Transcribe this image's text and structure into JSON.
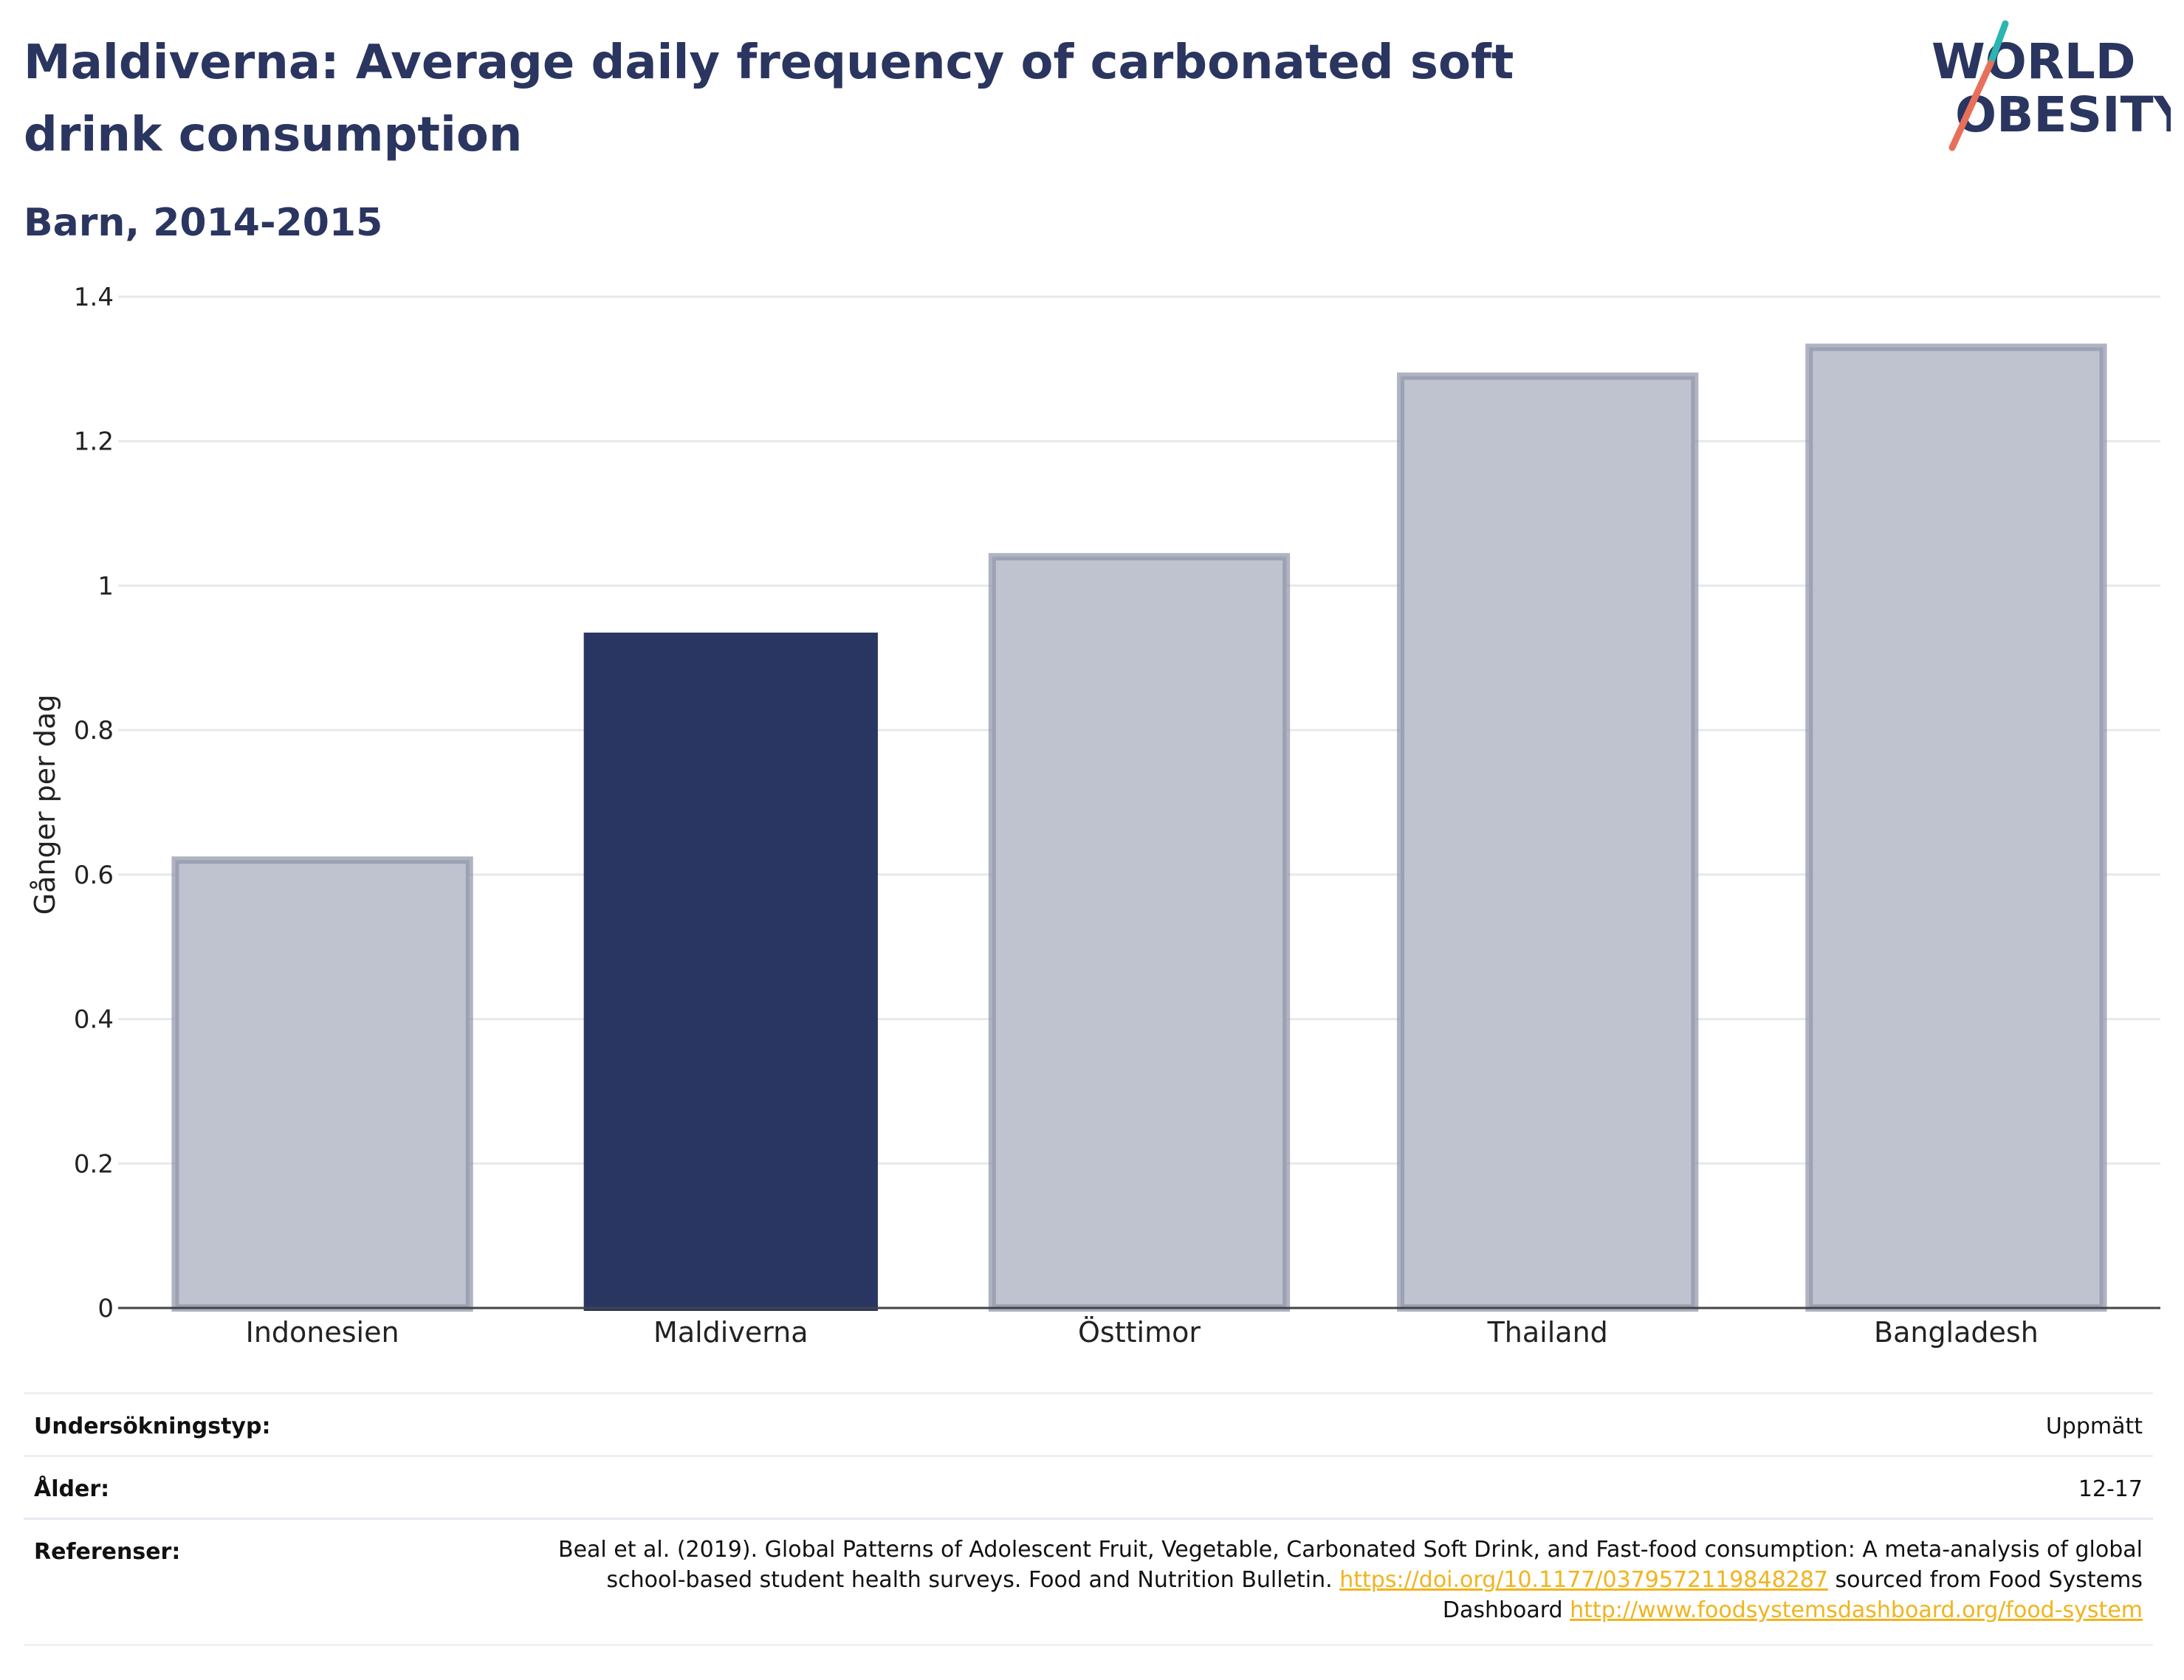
{
  "title": "Maldiverna: Average daily frequency of carbonated soft drink consumption",
  "subtitle": "Barn, 2014-2015",
  "logo": {
    "line1": "WORLD",
    "line2": "OBESITY"
  },
  "colors": {
    "highlight": "#2a3662",
    "other_fill": "#bfc3cf",
    "other_stroke": "#8d93a8",
    "title": "#2a3560",
    "link": "#f0b41e"
  },
  "chart_data": {
    "type": "bar",
    "categories": [
      "Indonesien",
      "Maldiverna",
      "Östtimor",
      "Thailand",
      "Bangladesh"
    ],
    "values": [
      0.62,
      0.935,
      1.04,
      1.29,
      1.33
    ],
    "highlight": "Maldiverna",
    "ylabel": "Gånger per dag",
    "xlabel": "",
    "ylim": [
      0,
      1.4
    ],
    "yticks": [
      0,
      0.2,
      0.4,
      0.6,
      0.8,
      1,
      1.2,
      1.4
    ],
    "ytick_labels": [
      "0",
      "0.2",
      "0.4",
      "0.6",
      "0.8",
      "1",
      "1.2",
      "1.4"
    ],
    "grid": true
  },
  "meta": {
    "survey_type_label": "Undersökningstyp:",
    "survey_type_value": "Uppmätt",
    "age_label": "Ålder:",
    "age_value": "12-17",
    "references_label": "Referenser:",
    "references_text_1": "Beal et al. (2019). Global Patterns of Adolescent Fruit, Vegetable, Carbonated Soft Drink, and Fast-food consumption: A meta-analysis of global school-based student health surveys. Food and Nutrition Bulletin.",
    "references_link_1": "https://doi.org/10.1177/0379572119848287",
    "references_text_2": "sourced from Food Systems Dashboard",
    "references_link_2": "http://www.foodsystemsdashboard.org/food-system"
  }
}
